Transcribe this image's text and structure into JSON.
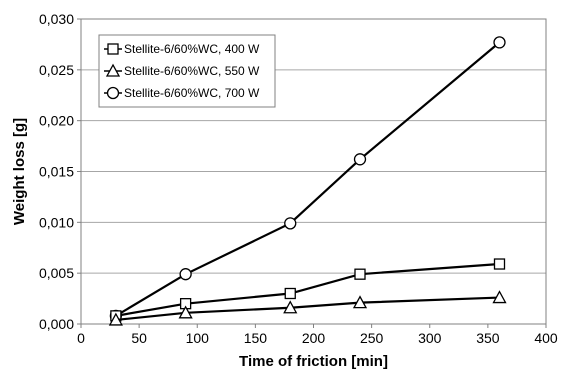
{
  "chart_data": {
    "type": "line",
    "title": "",
    "xlabel": "Time of friction [min]",
    "ylabel": "Weight loss [g]",
    "xlim": [
      0,
      400
    ],
    "ylim": [
      0,
      0.03
    ],
    "x_ticks": [
      "0",
      "50",
      "100",
      "150",
      "200",
      "250",
      "300",
      "350",
      "400"
    ],
    "y_ticks": [
      "0,000",
      "0,005",
      "0,010",
      "0,015",
      "0,020",
      "0,025",
      "0,030"
    ],
    "grid": "horizontal",
    "legend_position": "top-left",
    "series": [
      {
        "name": "Stellite-6/60%WC, 400 W",
        "marker": "square",
        "x": [
          30,
          90,
          180,
          240,
          360
        ],
        "y": [
          0.0008,
          0.002,
          0.003,
          0.0049,
          0.0059
        ]
      },
      {
        "name": "Stellite-6/60%WC, 550 W",
        "marker": "triangle",
        "x": [
          30,
          90,
          180,
          240,
          360
        ],
        "y": [
          0.0004,
          0.0011,
          0.0016,
          0.0021,
          0.0026
        ]
      },
      {
        "name": "Stellite-6/60%WC, 700 W",
        "marker": "circle",
        "x": [
          30,
          90,
          180,
          240,
          360
        ],
        "y": [
          0.0008,
          0.0049,
          0.0099,
          0.0162,
          0.0277
        ]
      }
    ]
  }
}
